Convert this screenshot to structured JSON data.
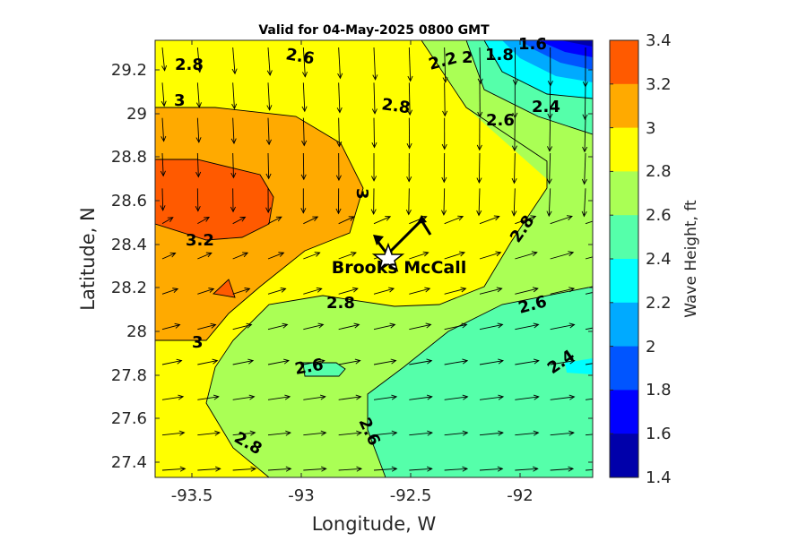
{
  "title": "Valid for 04-May-2025 0800 GMT",
  "x_axis": {
    "label": "Longitude, W",
    "ticks": [
      "-93.5",
      "-93",
      "-92.5",
      "-92"
    ]
  },
  "y_axis": {
    "label": "Latitude, N",
    "ticks": [
      "29.2",
      "29",
      "28.8",
      "28.6",
      "28.4",
      "28.2",
      "28",
      "27.8",
      "27.6",
      "27.4"
    ]
  },
  "colorbar": {
    "label": "Wave Height, ft",
    "ticks": [
      "3.4",
      "3.2",
      "3",
      "2.8",
      "2.6",
      "2.4",
      "2.2",
      "2",
      "1.8",
      "1.6",
      "1.4"
    ],
    "colors_top_to_bottom": [
      "#ff5a00",
      "#ffaa00",
      "#ffff00",
      "#aaff55",
      "#55ffaa",
      "#00ffff",
      "#00aaff",
      "#0055ff",
      "#0000ff",
      "#0000aa"
    ]
  },
  "station": {
    "label": "Brooks McCall"
  },
  "contour_labels": [
    "2.8",
    "2.6",
    "2.2",
    "2",
    "1.8",
    "1.6",
    "3",
    "2.8",
    "2.6",
    "2.4",
    "3",
    "3.2",
    "2.8",
    "2.8",
    "2.6",
    "3",
    "2.6",
    "2.4",
    "2.6",
    "2.8"
  ],
  "chart_data": {
    "type": "heatmap",
    "title": "Valid for 04-May-2025 0800 GMT",
    "xlabel": "Longitude, W",
    "ylabel": "Latitude, N",
    "xlim": [
      -93.67,
      -91.67
    ],
    "ylim": [
      27.33,
      29.33
    ],
    "clim": [
      1.4,
      3.4
    ],
    "colorbar_label": "Wave Height, ft",
    "grid": false,
    "layers": [
      "filled contours of wave height",
      "wind direction arrows",
      "vessel track"
    ],
    "station": {
      "name": "Brooks McCall",
      "lon": -92.64,
      "lat": 28.36
    },
    "track": [
      [
        -92.68,
        28.42
      ],
      [
        -92.64,
        28.36
      ],
      [
        -92.52,
        28.5
      ],
      [
        -92.45,
        28.48
      ]
    ]
  }
}
